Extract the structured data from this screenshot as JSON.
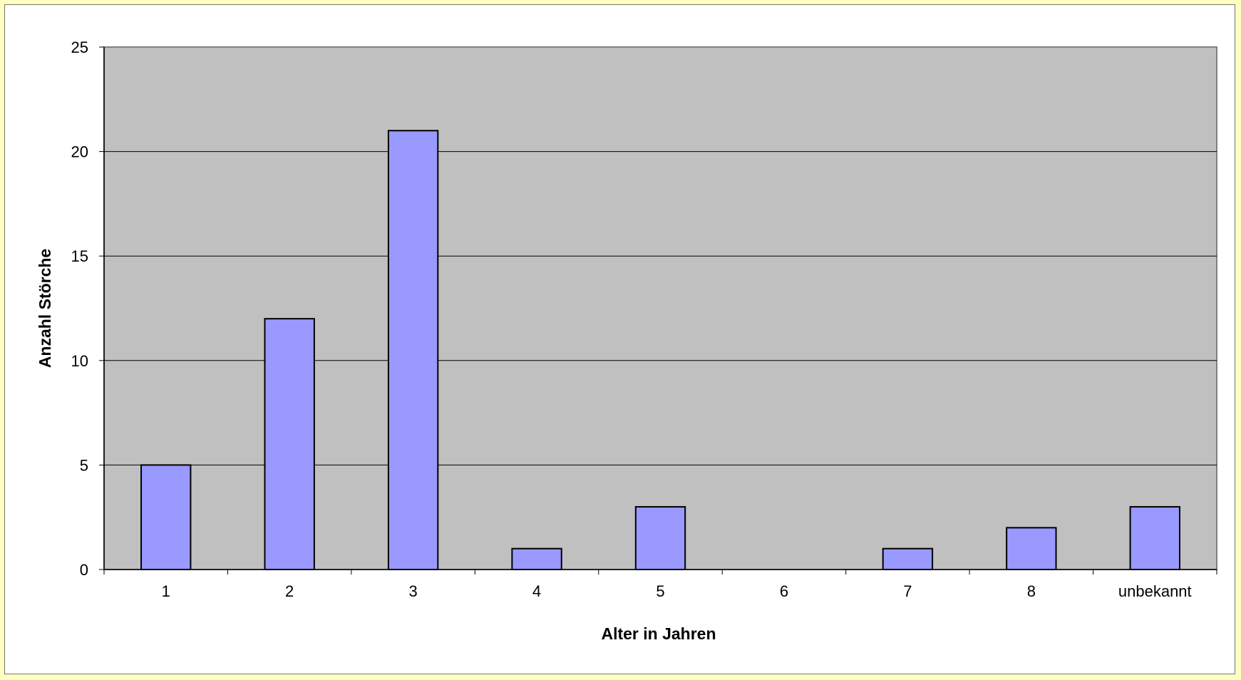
{
  "chart_data": {
    "type": "bar",
    "categories": [
      "1",
      "2",
      "3",
      "4",
      "5",
      "6",
      "7",
      "8",
      "unbekannt"
    ],
    "values": [
      5,
      12,
      21,
      1,
      3,
      0,
      1,
      2,
      3
    ],
    "title": "",
    "xlabel": "Alter in Jahren",
    "ylabel": "Anzahl Störche",
    "ylim": [
      0,
      25
    ],
    "yticks": [
      "0",
      "5",
      "10",
      "15",
      "20",
      "25"
    ],
    "grid": true,
    "legend": "none",
    "colors": {
      "bar_fill": "#9999ff",
      "bar_stroke": "#000000",
      "plot_background": "#c0c0c0",
      "gridline": "#000000",
      "page_background": "#ffffc0",
      "chart_background": "#ffffff"
    }
  }
}
